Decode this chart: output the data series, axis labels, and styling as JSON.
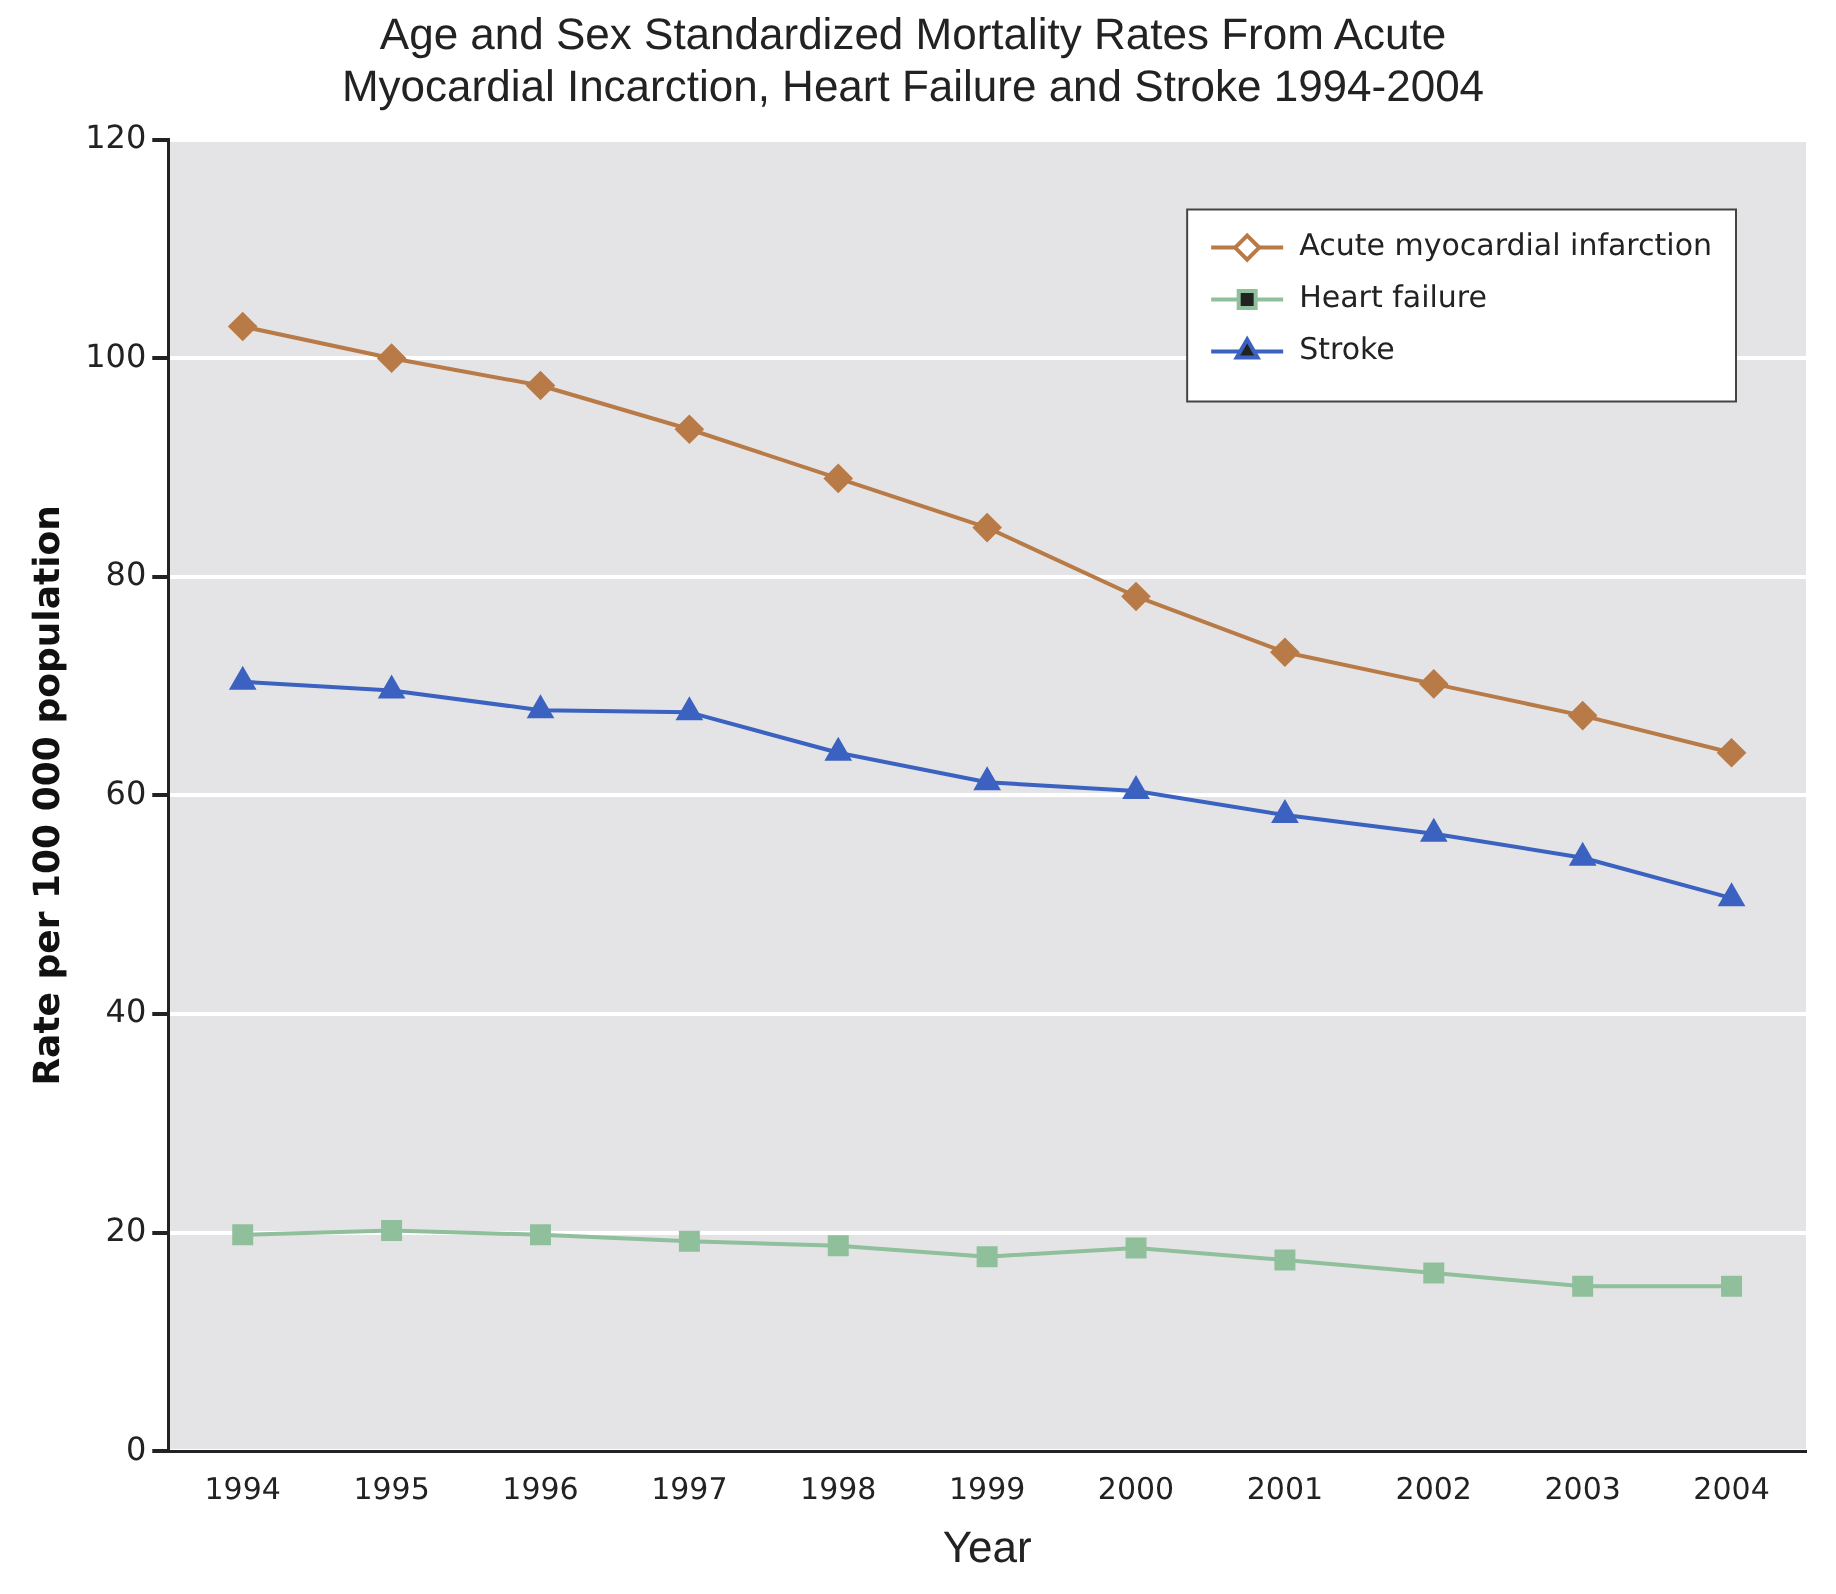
{
  "chart_data": {
    "type": "line",
    "title": "Age and Sex Standardized Mortality Rates From Acute\nMyocardial Incarction, Heart Failure and Stroke 1994-2004",
    "xlabel": "Year",
    "ylabel": "Rate per 100 000 population",
    "categories": [
      "1994",
      "1995",
      "1996",
      "1997",
      "1998",
      "1999",
      "2000",
      "2001",
      "2002",
      "2003",
      "2004"
    ],
    "series": [
      {
        "name": "Acute myocardial infarction",
        "color": "#b87a46",
        "marker": "diamond",
        "values": [
          102.9,
          100,
          97.5,
          93.5,
          89,
          84.5,
          78.2,
          73.1,
          70.2,
          67.3,
          63.9
        ]
      },
      {
        "name": "Heart failure",
        "color": "#8fbf9b",
        "marker": "square",
        "values": [
          19.8,
          20.2,
          19.8,
          19.2,
          18.8,
          17.8,
          18.6,
          17.5,
          16.3,
          15.1,
          15.1
        ]
      },
      {
        "name": "Stroke",
        "color": "#3b62c0",
        "marker": "triangle",
        "values": [
          70.4,
          69.6,
          67.8,
          67.6,
          63.9,
          61.2,
          60.4,
          58.2,
          56.5,
          54.3,
          50.6
        ]
      }
    ],
    "ylim": [
      0,
      120
    ],
    "yticks": [
      0,
      20,
      40,
      60,
      80,
      100,
      120
    ],
    "grid": "y",
    "legend": "top right",
    "line_style": "solid"
  }
}
